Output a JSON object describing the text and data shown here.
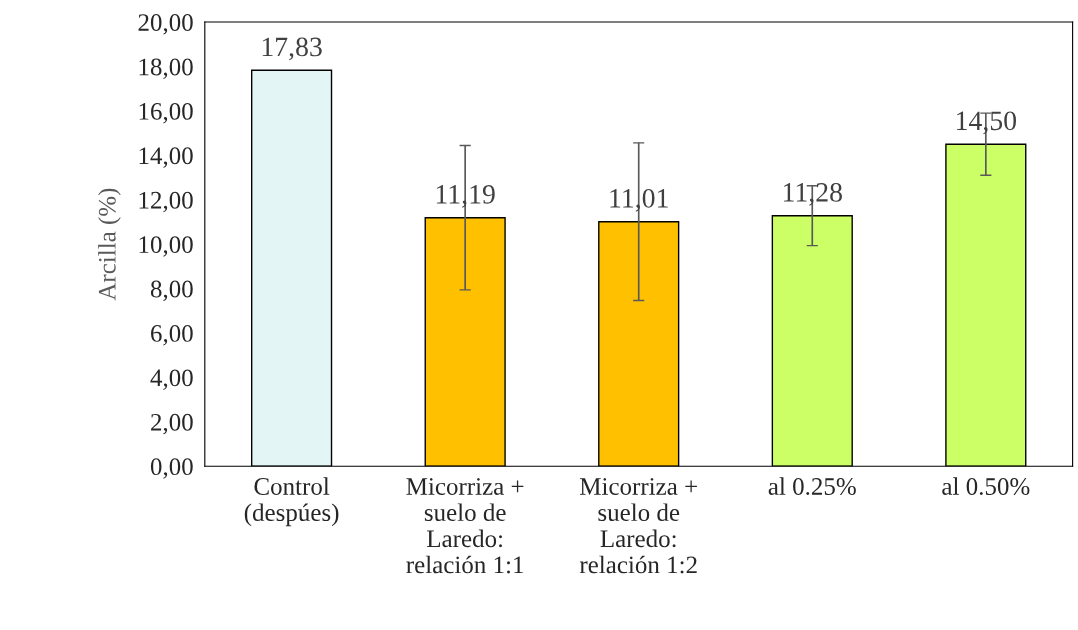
{
  "chart_data": {
    "type": "bar",
    "ylabel": "Arcilla (%)",
    "categories": [
      "Control\n(despúes)",
      "Micorriza +\nsuelo de\nLaredo:\nrelación 1:1",
      "Micorriza +\nsuelo de\nLaredo:\nrelación 1:2",
      "al 0.25%",
      "al 0.50%"
    ],
    "values": [
      17.83,
      11.19,
      11.01,
      11.28,
      14.5
    ],
    "value_labels": [
      "17,83",
      "11,19",
      "11,01",
      "11,28",
      "14,50"
    ],
    "errors": [
      null,
      3.25,
      3.55,
      1.35,
      1.4
    ],
    "colors": [
      "#e3f5f5",
      "#ffc000",
      "#ffc000",
      "#ccff66",
      "#ccff66"
    ],
    "ylim": [
      0,
      20
    ],
    "yticks": [
      {
        "value": 0,
        "label": "0,00"
      },
      {
        "value": 2,
        "label": "2,00"
      },
      {
        "value": 4,
        "label": "4,00"
      },
      {
        "value": 6,
        "label": "6,00"
      },
      {
        "value": 8,
        "label": "8,00"
      },
      {
        "value": 10,
        "label": "10,00"
      },
      {
        "value": 12,
        "label": "12,00"
      },
      {
        "value": 14,
        "label": "14,00"
      },
      {
        "value": 16,
        "label": "16,00"
      },
      {
        "value": 18,
        "label": "18,00"
      },
      {
        "value": 20,
        "label": "20,00"
      }
    ],
    "grid": false,
    "legend": false
  }
}
